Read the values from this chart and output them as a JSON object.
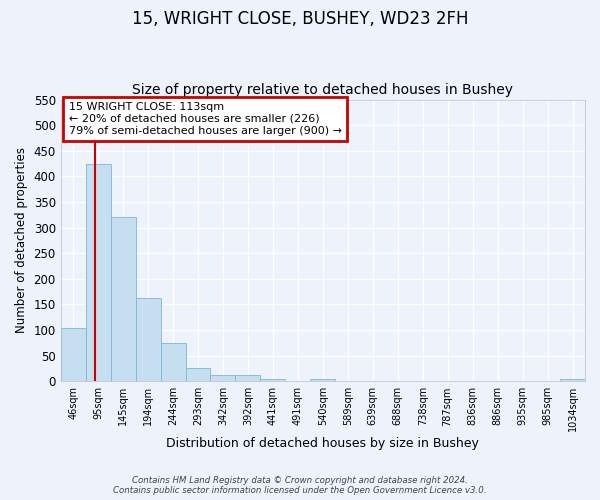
{
  "title1": "15, WRIGHT CLOSE, BUSHEY, WD23 2FH",
  "title2": "Size of property relative to detached houses in Bushey",
  "xlabel": "Distribution of detached houses by size in Bushey",
  "ylabel": "Number of detached properties",
  "bar_labels": [
    "46sqm",
    "95sqm",
    "145sqm",
    "194sqm",
    "244sqm",
    "293sqm",
    "342sqm",
    "392sqm",
    "441sqm",
    "491sqm",
    "540sqm",
    "589sqm",
    "639sqm",
    "688sqm",
    "738sqm",
    "787sqm",
    "836sqm",
    "886sqm",
    "935sqm",
    "985sqm",
    "1034sqm"
  ],
  "bar_values": [
    105,
    425,
    320,
    162,
    75,
    27,
    13,
    13,
    5,
    0,
    5,
    0,
    0,
    0,
    0,
    0,
    0,
    0,
    0,
    0,
    4
  ],
  "bar_color": "#c5dff0",
  "bar_edge_color": "#7bb8d8",
  "ylim": [
    0,
    550
  ],
  "yticks": [
    0,
    50,
    100,
    150,
    200,
    250,
    300,
    350,
    400,
    450,
    500,
    550
  ],
  "property_line_color": "#cc0000",
  "annotation_title": "15 WRIGHT CLOSE: 113sqm",
  "annotation_line1": "← 20% of detached houses are smaller (226)",
  "annotation_line2": "79% of semi-detached houses are larger (900) →",
  "annotation_box_color": "#cc0000",
  "footer1": "Contains HM Land Registry data © Crown copyright and database right 2024.",
  "footer2": "Contains public sector information licensed under the Open Government Licence v3.0.",
  "background_color": "#eef2fb",
  "grid_color": "#ffffff",
  "title1_fontsize": 12,
  "title2_fontsize": 10
}
